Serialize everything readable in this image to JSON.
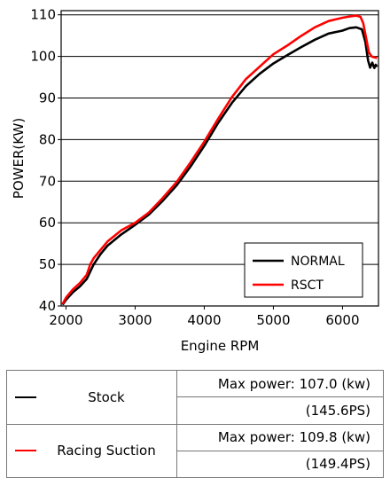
{
  "chart_data": {
    "type": "line",
    "xlabel": "Engine RPM",
    "ylabel": "POWER(KW)",
    "xlim": [
      1930,
      6520
    ],
    "ylim": [
      40,
      111
    ],
    "x_ticks": [
      2000,
      3000,
      4000,
      5000,
      6000
    ],
    "y_ticks": [
      40,
      50,
      60,
      70,
      80,
      90,
      100,
      110
    ],
    "grid": "horizontal",
    "legend_position": "bottom-right",
    "series": [
      {
        "name": "NORMAL",
        "color": "#000000",
        "x": [
          1950,
          2000,
          2100,
          2200,
          2300,
          2400,
          2500,
          2600,
          2800,
          3000,
          3200,
          3400,
          3600,
          3800,
          4000,
          4200,
          4400,
          4600,
          4800,
          5000,
          5200,
          5400,
          5600,
          5800,
          6000,
          6100,
          6200,
          6280,
          6330,
          6370,
          6400,
          6430,
          6460,
          6480,
          6500
        ],
        "y": [
          40.3,
          41.5,
          43.3,
          44.7,
          46.5,
          50.0,
          52.5,
          54.5,
          57.2,
          59.5,
          62.0,
          65.3,
          69.0,
          73.5,
          78.5,
          84.0,
          88.8,
          92.8,
          95.8,
          98.3,
          100.3,
          102.2,
          104.0,
          105.5,
          106.2,
          106.8,
          107.0,
          106.5,
          103.5,
          99.0,
          97.3,
          98.5,
          97.2,
          98.0,
          97.5
        ]
      },
      {
        "name": "RSCT",
        "color": "#ff0000",
        "x": [
          1950,
          2000,
          2100,
          2200,
          2300,
          2350,
          2400,
          2500,
          2600,
          2800,
          3000,
          3200,
          3400,
          3600,
          3800,
          4000,
          4200,
          4400,
          4600,
          4800,
          5000,
          5200,
          5400,
          5600,
          5800,
          6000,
          6100,
          6200,
          6260,
          6300,
          6340,
          6380,
          6420,
          6450,
          6480,
          6500
        ],
        "y": [
          40.5,
          42.0,
          44.0,
          45.5,
          47.5,
          50.0,
          51.5,
          53.5,
          55.5,
          58.2,
          60.0,
          62.5,
          66.0,
          69.8,
          74.5,
          79.5,
          85.0,
          90.2,
          94.5,
          97.5,
          100.5,
          102.6,
          104.9,
          107.0,
          108.5,
          109.3,
          109.6,
          109.8,
          109.5,
          108.0,
          104.5,
          101.0,
          100.0,
          99.8,
          99.7,
          99.6
        ]
      }
    ]
  },
  "table": {
    "rows": [
      {
        "name": "Stock",
        "color": "#000000",
        "max_power": "Max power: 107.0 (kw)",
        "ps": "(145.6PS)"
      },
      {
        "name": "Racing Suction",
        "color": "#ff0000",
        "max_power": "Max power: 109.8 (kw)",
        "ps": "(149.4PS)"
      }
    ]
  }
}
